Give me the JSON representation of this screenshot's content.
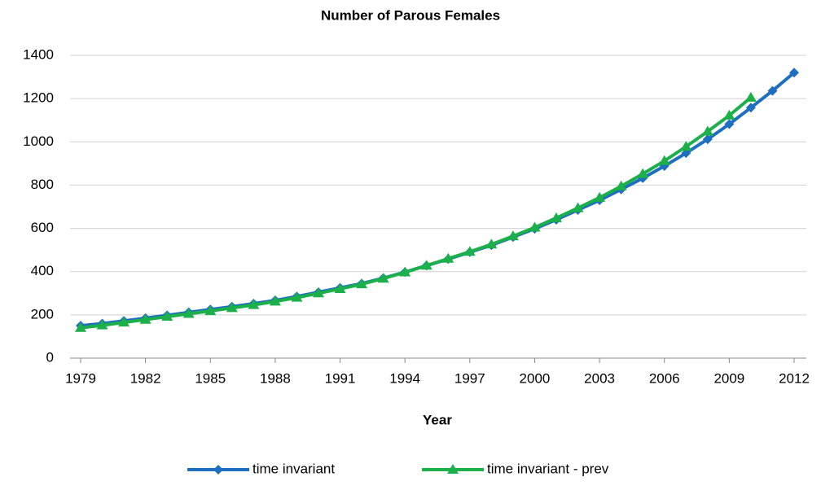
{
  "chart_data": {
    "type": "line",
    "title": "Number of Parous Females",
    "x_label": "Year",
    "x": [
      1979,
      1980,
      1981,
      1982,
      1983,
      1984,
      1985,
      1986,
      1987,
      1988,
      1989,
      1990,
      1991,
      1992,
      1993,
      1994,
      1995,
      1996,
      1997,
      1998,
      1999,
      2000,
      2001,
      2002,
      2003,
      2004,
      2005,
      2006,
      2007,
      2008,
      2009,
      2010,
      2011,
      2012
    ],
    "series": [
      {
        "name": "time invariant",
        "color": "#1f6fc0",
        "marker": "diamond",
        "values": [
          150,
          160,
          172,
          185,
          198,
          212,
          225,
          238,
          252,
          267,
          285,
          305,
          325,
          345,
          370,
          398,
          428,
          458,
          490,
          522,
          560,
          598,
          640,
          685,
          730,
          780,
          832,
          888,
          948,
          1012,
          1082,
          1158,
          1236,
          1320
        ]
      },
      {
        "name": "time invariant - prev",
        "color": "#1bb04a",
        "marker": "triangle",
        "values": [
          140,
          152,
          165,
          178,
          192,
          205,
          218,
          232,
          246,
          262,
          280,
          300,
          320,
          342,
          368,
          397,
          428,
          460,
          492,
          526,
          564,
          604,
          648,
          694,
          742,
          795,
          852,
          912,
          978,
          1048,
          1122,
          1205,
          null,
          null
        ]
      }
    ],
    "xlim": [
      1979,
      2012
    ],
    "xticks": [
      1979,
      1982,
      1985,
      1988,
      1991,
      1994,
      1997,
      2000,
      2003,
      2006,
      2009,
      2012
    ],
    "ylim": [
      0,
      1400
    ],
    "yticks": [
      0,
      200,
      400,
      600,
      800,
      1000,
      1200,
      1400
    ],
    "grid": true
  }
}
